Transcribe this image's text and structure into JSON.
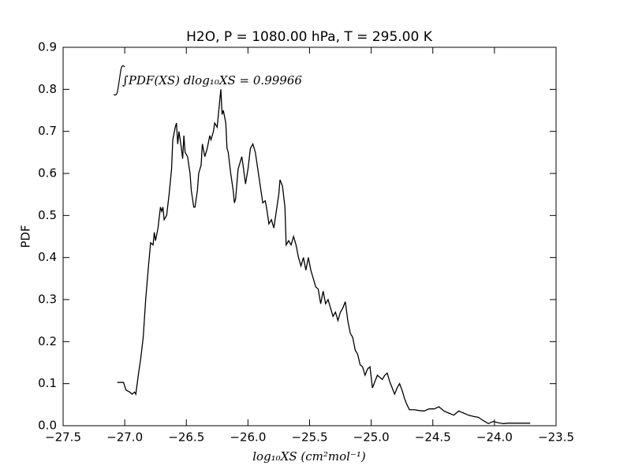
{
  "chart_data": {
    "type": "line",
    "title": "H2O, P = 1080.00 hPa, T = 295.00 K",
    "xlabel": "log₁₀XS (cm²mol⁻¹)",
    "ylabel": "PDF",
    "annotation": "∫PDF(XS) dlog₁₀XS = 0.99966",
    "xlim": [
      -27.5,
      -23.5
    ],
    "ylim": [
      0,
      0.9
    ],
    "xticks": [
      {
        "value": -27.5,
        "label": "−27.5"
      },
      {
        "value": -27.0,
        "label": "−27.0"
      },
      {
        "value": -26.5,
        "label": "−26.5"
      },
      {
        "value": -26.0,
        "label": "−26.0"
      },
      {
        "value": -25.5,
        "label": "−25.5"
      },
      {
        "value": -25.0,
        "label": "−25.0"
      },
      {
        "value": -24.5,
        "label": "−24.5"
      },
      {
        "value": -24.0,
        "label": "−24.0"
      },
      {
        "value": -23.5,
        "label": "−23.5"
      }
    ],
    "yticks": [
      {
        "value": 0,
        "label": "0.0"
      },
      0.1,
      0.2,
      0.3,
      0.4,
      0.5,
      0.6,
      0.7,
      0.8,
      0.9
    ],
    "color": "#000000",
    "grid": false,
    "x": [
      -27.06,
      -27.01,
      -26.99,
      -26.96,
      -26.94,
      -26.92,
      -26.91,
      -26.89,
      -26.87,
      -26.85,
      -26.83,
      -26.81,
      -26.79,
      -26.77,
      -26.76,
      -26.75,
      -26.73,
      -26.71,
      -26.7,
      -26.69,
      -26.68,
      -26.66,
      -26.64,
      -26.62,
      -26.61,
      -26.59,
      -26.58,
      -26.57,
      -26.56,
      -26.54,
      -26.53,
      -26.52,
      -26.51,
      -26.49,
      -26.47,
      -26.46,
      -26.44,
      -26.43,
      -26.41,
      -26.4,
      -26.38,
      -26.37,
      -26.35,
      -26.33,
      -26.31,
      -26.3,
      -26.28,
      -26.27,
      -26.25,
      -26.24,
      -26.22,
      -26.21,
      -26.2,
      -26.18,
      -26.17,
      -26.16,
      -26.14,
      -26.12,
      -26.11,
      -26.1,
      -26.08,
      -26.07,
      -26.05,
      -26.04,
      -26.02,
      -26.0,
      -25.98,
      -25.96,
      -25.94,
      -25.92,
      -25.9,
      -25.88,
      -25.86,
      -25.85,
      -25.83,
      -25.81,
      -25.79,
      -25.77,
      -25.75,
      -25.74,
      -25.72,
      -25.7,
      -25.69,
      -25.67,
      -25.65,
      -25.63,
      -25.61,
      -25.59,
      -25.57,
      -25.55,
      -25.53,
      -25.51,
      -25.49,
      -25.47,
      -25.45,
      -25.43,
      -25.41,
      -25.39,
      -25.37,
      -25.35,
      -25.33,
      -25.31,
      -25.29,
      -25.27,
      -25.25,
      -25.23,
      -25.21,
      -25.19,
      -25.17,
      -25.15,
      -25.13,
      -25.11,
      -25.09,
      -25.07,
      -25.05,
      -25.03,
      -25.01,
      -24.99,
      -24.97,
      -24.95,
      -24.93,
      -24.91,
      -24.89,
      -24.87,
      -24.85,
      -24.83,
      -24.81,
      -24.79,
      -24.77,
      -24.75,
      -24.73,
      -24.71,
      -24.69,
      -24.65,
      -24.61,
      -24.57,
      -24.53,
      -24.49,
      -24.45,
      -24.41,
      -24.37,
      -24.33,
      -24.29,
      -24.25,
      -24.21,
      -24.17,
      -24.13,
      -24.09,
      -24.05,
      -24.01,
      -23.97,
      -23.93,
      -23.89,
      -23.85,
      -23.79,
      -23.71
    ],
    "values": [
      0.103,
      0.103,
      0.085,
      0.08,
      0.075,
      0.08,
      0.075,
      0.12,
      0.16,
      0.21,
      0.3,
      0.37,
      0.435,
      0.43,
      0.46,
      0.44,
      0.47,
      0.52,
      0.51,
      0.52,
      0.49,
      0.5,
      0.55,
      0.61,
      0.68,
      0.71,
      0.72,
      0.67,
      0.7,
      0.66,
      0.635,
      0.69,
      0.65,
      0.64,
      0.6,
      0.56,
      0.52,
      0.52,
      0.56,
      0.6,
      0.62,
      0.67,
      0.64,
      0.66,
      0.69,
      0.68,
      0.7,
      0.72,
      0.71,
      0.74,
      0.8,
      0.74,
      0.75,
      0.72,
      0.66,
      0.65,
      0.6,
      0.56,
      0.53,
      0.54,
      0.61,
      0.62,
      0.64,
      0.62,
      0.575,
      0.61,
      0.66,
      0.67,
      0.65,
      0.61,
      0.57,
      0.53,
      0.535,
      0.52,
      0.48,
      0.49,
      0.47,
      0.51,
      0.55,
      0.585,
      0.57,
      0.52,
      0.43,
      0.44,
      0.43,
      0.45,
      0.43,
      0.4,
      0.38,
      0.4,
      0.37,
      0.4,
      0.37,
      0.35,
      0.33,
      0.325,
      0.29,
      0.32,
      0.29,
      0.3,
      0.28,
      0.26,
      0.27,
      0.25,
      0.27,
      0.28,
      0.295,
      0.25,
      0.22,
      0.21,
      0.18,
      0.17,
      0.145,
      0.14,
      0.12,
      0.135,
      0.14,
      0.09,
      0.105,
      0.12,
      0.115,
      0.11,
      0.12,
      0.125,
      0.105,
      0.09,
      0.075,
      0.09,
      0.1,
      0.085,
      0.065,
      0.05,
      0.038,
      0.038,
      0.036,
      0.035,
      0.04,
      0.04,
      0.045,
      0.035,
      0.03,
      0.025,
      0.035,
      0.03,
      0.025,
      0.022,
      0.02,
      0.012,
      0.005,
      0.01,
      0.007,
      0.005,
      0.006,
      0.006,
      0.006,
      0.006
    ]
  }
}
